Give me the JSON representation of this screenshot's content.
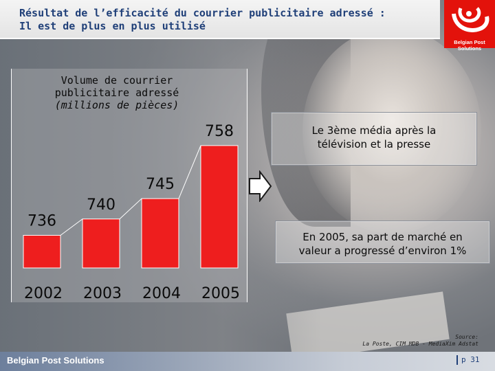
{
  "slide": {
    "title_line1": "Résultat de l’efficacité du courrier publicitaire adressé :",
    "title_line2": "Il est de plus en plus utilisé",
    "logo_text": "Belgian Post Solutions",
    "footer_brand": "Belgian Post Solutions",
    "page_label": "p 31",
    "source_line1": "Source:",
    "source_line2": "La Poste, CIM MDB - MediaXim Adstat",
    "callout_1_line1": "Le 3ème média après la",
    "callout_1_line2": "télévision et la presse",
    "callout_2_line1": "En 2005, sa part de marché en",
    "callout_2_line2": "valeur a progressé d’environ 1%",
    "colors": {
      "bar": "#ee1e1e",
      "title": "#1f3f78",
      "logo_red": "#e3120b"
    }
  },
  "chart_data": {
    "type": "bar",
    "title": "Volume de courrier publicitaire adressé",
    "ylabel": "(millions de pièces)",
    "categories": [
      "2002",
      "2003",
      "2004",
      "2005"
    ],
    "values": [
      736,
      740,
      745,
      758
    ],
    "value_labels": [
      "736",
      "740",
      "745",
      "758"
    ],
    "ylim": [
      728,
      760
    ],
    "grid": false,
    "legend": "none"
  }
}
